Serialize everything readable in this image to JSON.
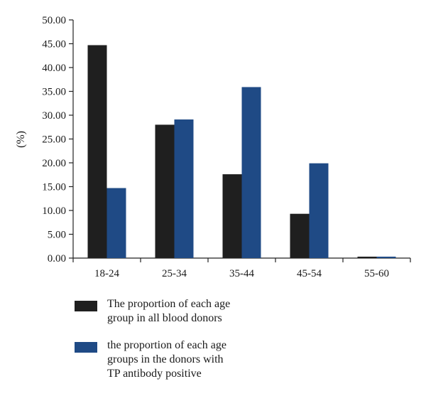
{
  "chart_data": {
    "type": "bar",
    "title": "",
    "xlabel": "",
    "ylabel": "(%)",
    "ylim": [
      0,
      50
    ],
    "ytick_step": 5,
    "ytick_labels": [
      "0.00",
      "5.00",
      "10.00",
      "15.00",
      "20.00",
      "25.00",
      "30.00",
      "35.00",
      "40.00",
      "45.00",
      "50.00"
    ],
    "categories": [
      "18-24",
      "25-34",
      "35-44",
      "45-54",
      "55-60"
    ],
    "grid": false,
    "legend_position": "bottom",
    "series": [
      {
        "name": "The proportion of each age group in all blood donors",
        "legend_lines": [
          "The proportion of each age",
          "group in all blood donors"
        ],
        "color": "#1f1f1f",
        "values": [
          44.7,
          28.0,
          17.6,
          9.3,
          0.3
        ]
      },
      {
        "name": "the proportion of each age groups in the donors with TP antibody positive",
        "legend_lines": [
          "the proportion of each age",
          "groups in the donors with",
          "TP antibody positive"
        ],
        "color": "#1f4a85",
        "values": [
          14.7,
          29.1,
          35.9,
          19.9,
          0.3
        ]
      }
    ]
  }
}
